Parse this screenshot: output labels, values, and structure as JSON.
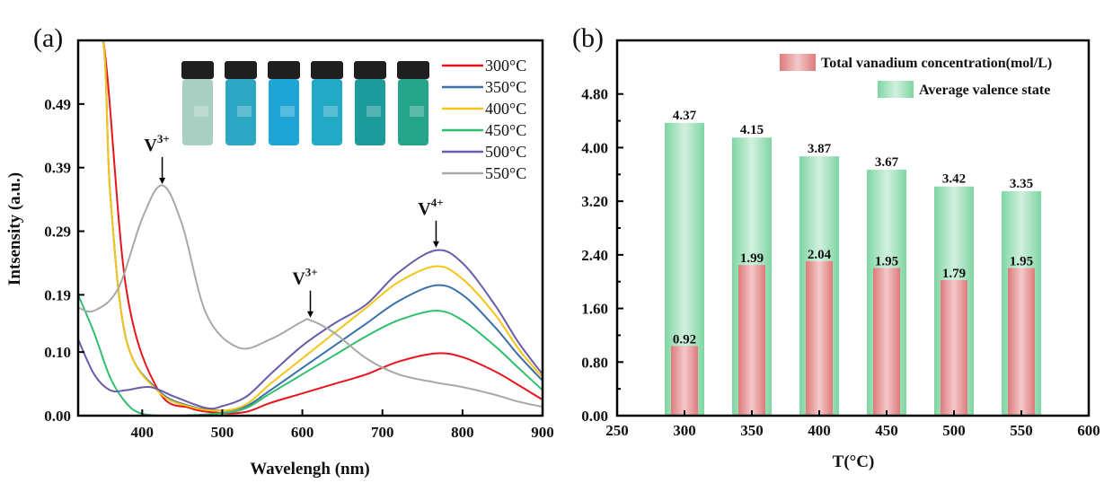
{
  "chart_data": [
    {
      "panel_label": "(a)",
      "type": "line",
      "title": "",
      "xlabel": "Wavelengh (nm)",
      "ylabel": "Intsensity (a.u.)",
      "xlim": [
        320,
        900
      ],
      "ylim": [
        0,
        0.59
      ],
      "xticks": [
        "400",
        "500",
        "600",
        "700",
        "800",
        "900"
      ],
      "yticks": [
        "0.00",
        "0.10",
        "0.19",
        "0.29",
        "0.39",
        "0.49"
      ],
      "grid": false,
      "legend_position": "top-right",
      "annotations": [
        {
          "text": "V",
          "sup": "3+",
          "x": 425,
          "y": 0.36
        },
        {
          "text": "V",
          "sup": "3+",
          "x": 610,
          "y": 0.15
        },
        {
          "text": "V",
          "sup": "4+",
          "x": 767,
          "y": 0.26
        }
      ],
      "inset": "photo of six vials (300–550°C samples)",
      "series": [
        {
          "name": "300°C",
          "color": "#e8141c",
          "x": [
            320,
            350,
            380,
            420,
            460,
            500,
            530,
            560,
            600,
            640,
            680,
            720,
            767,
            800,
            840,
            870,
            900
          ],
          "y": [
            0.6,
            0.6,
            0.2,
            0.04,
            0.012,
            0.004,
            0.006,
            0.02,
            0.035,
            0.05,
            0.065,
            0.085,
            0.098,
            0.092,
            0.07,
            0.048,
            0.025
          ]
        },
        {
          "name": "350°C",
          "color": "#3a6fa8",
          "x": [
            320,
            350,
            360,
            380,
            420,
            460,
            500,
            530,
            560,
            600,
            640,
            680,
            720,
            767,
            800,
            840,
            870,
            900
          ],
          "y": [
            0.6,
            0.6,
            0.35,
            0.12,
            0.04,
            0.015,
            0.008,
            0.015,
            0.04,
            0.075,
            0.11,
            0.145,
            0.18,
            0.205,
            0.19,
            0.14,
            0.095,
            0.055
          ]
        },
        {
          "name": "400°C",
          "color": "#f5c518",
          "x": [
            320,
            350,
            360,
            380,
            420,
            460,
            500,
            530,
            560,
            600,
            640,
            680,
            720,
            767,
            800,
            840,
            870,
            900
          ],
          "y": [
            0.6,
            0.6,
            0.35,
            0.12,
            0.038,
            0.014,
            0.008,
            0.018,
            0.05,
            0.09,
            0.13,
            0.17,
            0.21,
            0.235,
            0.215,
            0.16,
            0.105,
            0.06
          ]
        },
        {
          "name": "450°C",
          "color": "#2fbf6e",
          "x": [
            320,
            340,
            360,
            380,
            400,
            440,
            500,
            530,
            560,
            600,
            640,
            680,
            720,
            767,
            800,
            840,
            870,
            900
          ],
          "y": [
            0.19,
            0.13,
            0.06,
            0.02,
            0.003,
            0.0,
            0.004,
            0.012,
            0.035,
            0.065,
            0.095,
            0.125,
            0.15,
            0.165,
            0.15,
            0.11,
            0.075,
            0.04
          ]
        },
        {
          "name": "500°C",
          "color": "#6a5ca8",
          "x": [
            320,
            340,
            360,
            380,
            410,
            440,
            480,
            500,
            530,
            560,
            600,
            640,
            680,
            720,
            767,
            800,
            840,
            870,
            900
          ],
          "y": [
            0.12,
            0.065,
            0.04,
            0.04,
            0.045,
            0.03,
            0.012,
            0.015,
            0.03,
            0.065,
            0.11,
            0.145,
            0.175,
            0.225,
            0.26,
            0.24,
            0.175,
            0.115,
            0.065
          ]
        },
        {
          "name": "550°C",
          "color": "#a8a8a8",
          "x": [
            320,
            340,
            370,
            400,
            425,
            450,
            480,
            520,
            560,
            600,
            610,
            640,
            680,
            720,
            767,
            800,
            840,
            870,
            900
          ],
          "y": [
            0.17,
            0.165,
            0.2,
            0.31,
            0.362,
            0.3,
            0.16,
            0.107,
            0.12,
            0.148,
            0.15,
            0.13,
            0.09,
            0.065,
            0.052,
            0.045,
            0.033,
            0.022,
            0.014
          ]
        }
      ]
    },
    {
      "panel_label": "(b)",
      "type": "bar",
      "title": "",
      "xlabel": "T(°C)",
      "ylabel": "",
      "xlim": [
        250,
        600
      ],
      "ylim": [
        0,
        5.6
      ],
      "xticks": [
        "250",
        "300",
        "350",
        "400",
        "450",
        "500",
        "550",
        "600"
      ],
      "yticks": [
        "0.00",
        "0.80",
        "1.60",
        "2.40",
        "3.20",
        "4.00",
        "4.80"
      ],
      "grid": false,
      "legend_position": "top-right",
      "categories": [
        "300",
        "350",
        "400",
        "450",
        "500",
        "550"
      ],
      "series": [
        {
          "name": "Average valence state",
          "color": "#7ed6a2",
          "values": [
            4.37,
            4.15,
            3.87,
            3.67,
            3.42,
            3.35
          ],
          "labels": [
            "4.37",
            "4.15",
            "3.87",
            "3.67",
            "3.42",
            "3.35"
          ]
        },
        {
          "name": "Total vanadium concentration(mol/L)",
          "color": "#e07f80",
          "values": [
            0.92,
            1.99,
            2.04,
            1.95,
            1.79,
            1.95
          ],
          "labels": [
            "0.92",
            "1.99",
            "2.04",
            "1.95",
            "1.79",
            "1.95"
          ]
        }
      ]
    }
  ]
}
